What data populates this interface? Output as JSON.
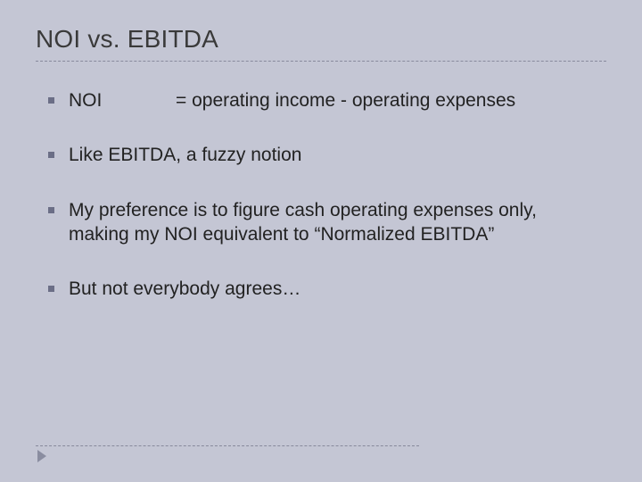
{
  "colors": {
    "slide_bg": "#c4c6d4",
    "title_color": "#3a3a3a",
    "body_color": "#222222",
    "bullet_color": "#6b6e86",
    "divider_color": "#888a9c",
    "footer_caret": "#8a8da0"
  },
  "typography": {
    "title_fontsize": 28,
    "body_fontsize": 21
  },
  "title": "NOI vs. EBITDA",
  "bullets": [
    {
      "two_col": true,
      "term": "NOI",
      "def": "= operating income - operating expenses"
    },
    {
      "text": "Like EBITDA, a fuzzy notion"
    },
    {
      "text": "My preference is to figure cash operating expenses only, making my NOI equivalent to “Normalized EBITDA”"
    },
    {
      "text": "But not everybody agrees…"
    }
  ]
}
